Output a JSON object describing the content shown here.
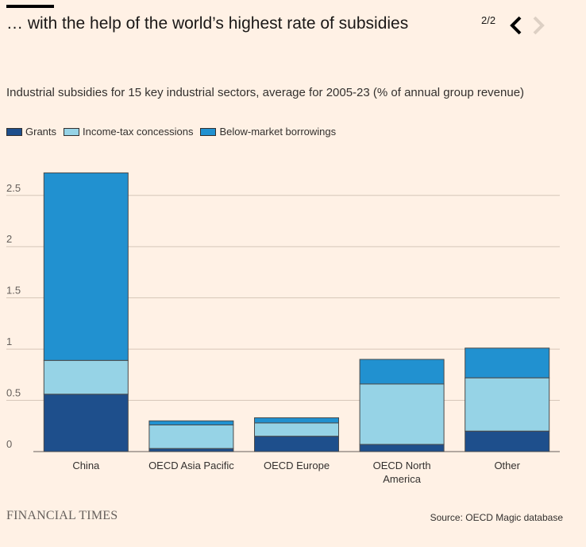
{
  "header": {
    "headline": "… with the help of the world’s highest rate of subsidies",
    "pager": "2/2"
  },
  "colors": {
    "background": "#fff1e5",
    "grants": "#1e4f8c",
    "income_tax": "#96d3e6",
    "borrowings": "#2191d0",
    "gridline": "#d6c7b9",
    "bar_outline": "#4a4a4a"
  },
  "chart_data": {
    "type": "bar",
    "stacked": true,
    "title": "Industrial subsidies for 15 key industrial sectors, average for 2005-23 (% of annual group revenue)",
    "categories": [
      "China",
      "OECD Asia Pacific",
      "OECD Europe",
      "OECD North America",
      "Other"
    ],
    "category_labels": [
      [
        "China"
      ],
      [
        "OECD Asia Pacific"
      ],
      [
        "OECD Europe"
      ],
      [
        "OECD North",
        "America"
      ],
      [
        "Other"
      ]
    ],
    "series": [
      {
        "name": "Grants",
        "values": [
          0.56,
          0.03,
          0.15,
          0.07,
          0.2
        ]
      },
      {
        "name": "Income-tax concessions",
        "values": [
          0.33,
          0.23,
          0.13,
          0.59,
          0.52
        ]
      },
      {
        "name": "Below-market borrowings",
        "values": [
          1.83,
          0.04,
          0.05,
          0.24,
          0.29
        ]
      }
    ],
    "yticks": [
      "0",
      "0.5",
      "1",
      "1.5",
      "2",
      "2.5"
    ],
    "ytick_values": [
      0,
      0.5,
      1,
      1.5,
      2,
      2.5
    ],
    "ylim": [
      0,
      2.7
    ],
    "xlabel": "",
    "ylabel": "",
    "legend": "top-left",
    "grid": true
  },
  "footer": {
    "brand": "FINANCIAL TIMES",
    "source": "Source: OECD Magic database"
  }
}
